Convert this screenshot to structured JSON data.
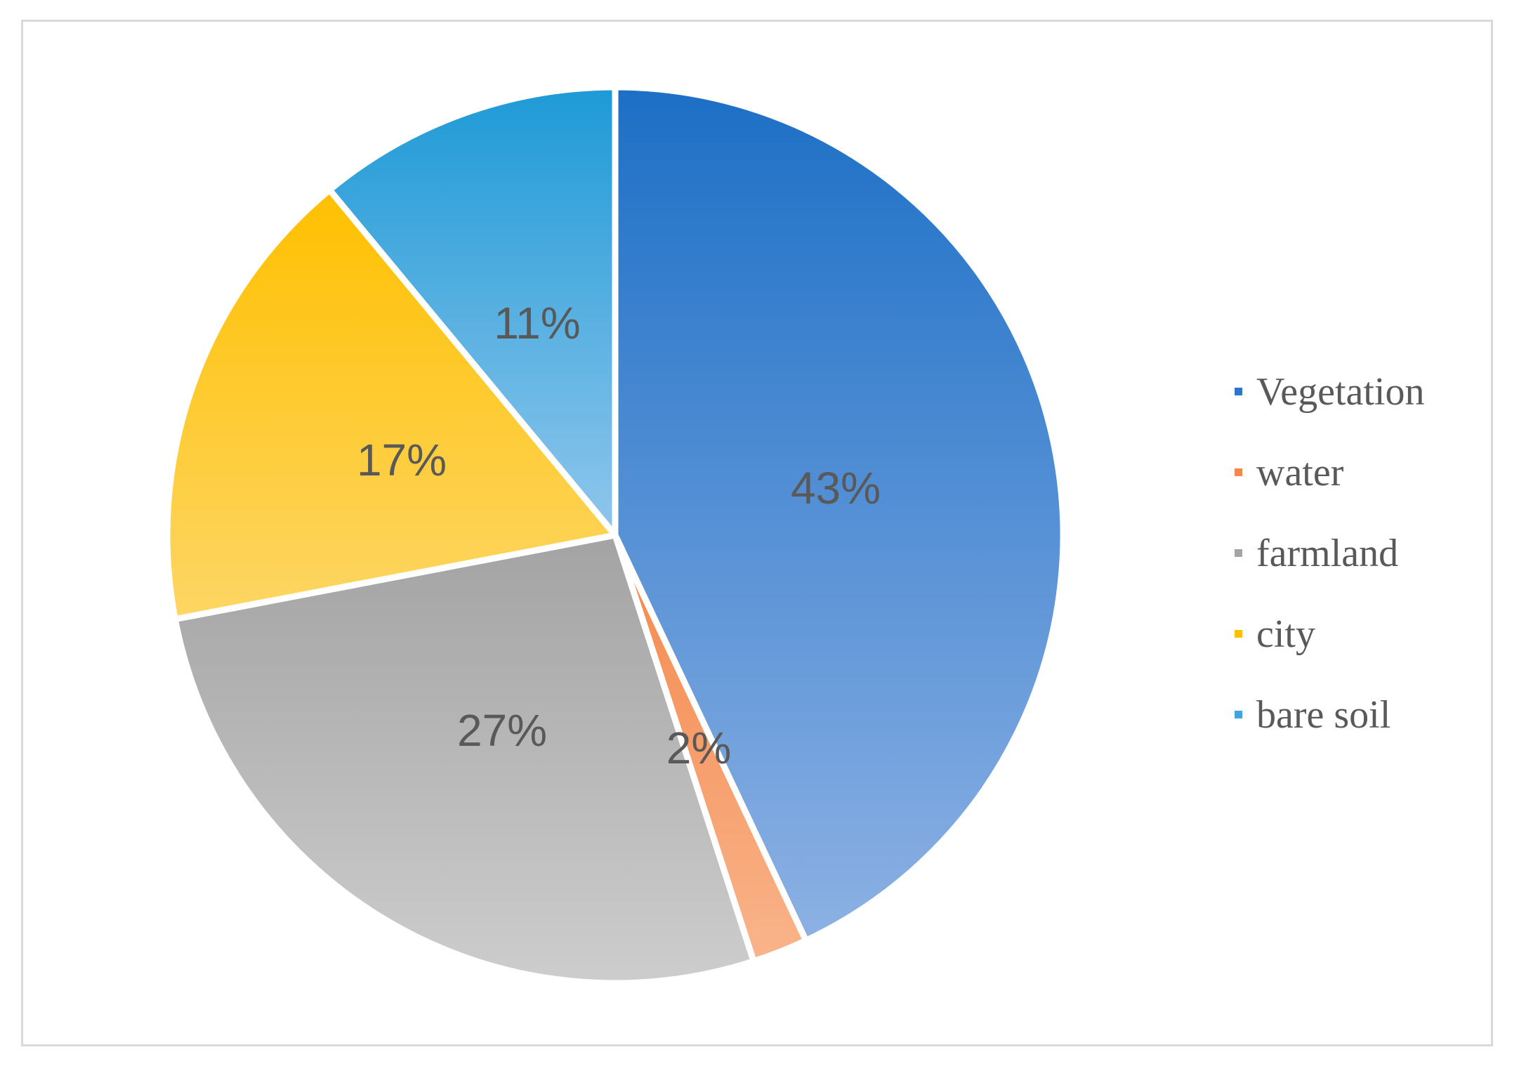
{
  "chart_data": {
    "type": "pie",
    "title": "",
    "categories": [
      "Vegetation",
      "water",
      "farmland",
      "city",
      "bare soil"
    ],
    "values": [
      43,
      2,
      27,
      17,
      11
    ],
    "data_labels": [
      "43%",
      "2%",
      "27%",
      "17%",
      "11%"
    ],
    "colors": [
      "#2E75C8",
      "#F4A878",
      "#B3B3B3",
      "#FFC000",
      "#3FA5DD"
    ],
    "legend": "right",
    "start_angle_deg": 0,
    "direction": "clockwise"
  },
  "legend": {
    "items": [
      {
        "label": "Vegetation",
        "color": "#2E75C8"
      },
      {
        "label": "water",
        "color": "#F4874B"
      },
      {
        "label": "farmland",
        "color": "#A5A5A5"
      },
      {
        "label": "city",
        "color": "#FFC000"
      },
      {
        "label": "bare soil",
        "color": "#42A4DC"
      }
    ]
  }
}
